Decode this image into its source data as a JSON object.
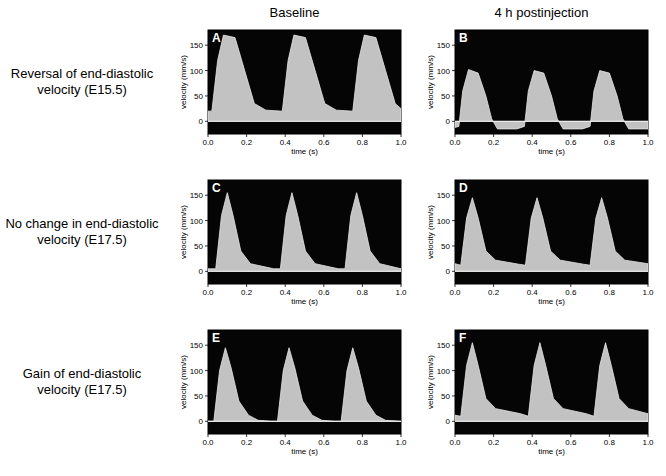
{
  "figure": {
    "columns": [
      "Baseline",
      "4 h postinjection"
    ],
    "rows": [
      "Reversal of end-diastolic velocity (E15.5)",
      "No change in end-diastolic velocity (E17.5)",
      "Gain of end-diastolic velocity (E17.5)"
    ]
  },
  "chart_data": [
    {
      "type": "area",
      "title": "A",
      "xlabel": "time (s)",
      "ylabel": "velocity (mm/s)",
      "color": "#e4e4e4",
      "x": [
        0,
        0.02,
        0.05,
        0.08,
        0.14,
        0.19,
        0.24,
        0.3,
        0.385,
        0.415,
        0.445,
        0.505,
        0.555,
        0.605,
        0.665,
        0.75,
        0.78,
        0.81,
        0.87,
        0.92,
        0.97,
        1.0
      ],
      "values": [
        20,
        20,
        120,
        170,
        165,
        100,
        35,
        22,
        20,
        120,
        170,
        165,
        100,
        35,
        22,
        20,
        120,
        170,
        165,
        100,
        35,
        25
      ],
      "xlim": [
        0,
        1
      ],
      "ylim": [
        -25,
        180
      ],
      "xticks": [
        {
          "value": 0,
          "label": "0.0"
        },
        {
          "value": 0.2,
          "label": "0.2"
        },
        {
          "value": 0.4,
          "label": "0.4"
        },
        {
          "value": 0.6,
          "label": "0.6"
        },
        {
          "value": 0.8,
          "label": "0.8"
        },
        {
          "value": 1,
          "label": "1.0"
        }
      ],
      "yticks": [
        0,
        50,
        100,
        150
      ]
    },
    {
      "type": "area",
      "title": "B",
      "xlabel": "time (s)",
      "ylabel": "velocity (mm/s)",
      "color": "#e4e4e4",
      "x": [
        0,
        0.02,
        0.04,
        0.07,
        0.12,
        0.16,
        0.19,
        0.22,
        0.32,
        0.36,
        0.38,
        0.41,
        0.46,
        0.5,
        0.53,
        0.56,
        0.66,
        0.7,
        0.72,
        0.75,
        0.8,
        0.84,
        0.87,
        0.9,
        1.0
      ],
      "values": [
        -12,
        -10,
        60,
        102,
        95,
        50,
        5,
        -15,
        -15,
        -10,
        60,
        100,
        95,
        50,
        5,
        -15,
        -15,
        -10,
        60,
        100,
        95,
        50,
        5,
        -15,
        -15
      ],
      "xlim": [
        0,
        1
      ],
      "ylim": [
        -25,
        180
      ],
      "xticks": [
        {
          "value": 0,
          "label": "0.0"
        },
        {
          "value": 0.2,
          "label": "0.2"
        },
        {
          "value": 0.4,
          "label": "0.4"
        },
        {
          "value": 0.6,
          "label": "0.6"
        },
        {
          "value": 0.8,
          "label": "0.8"
        },
        {
          "value": 1,
          "label": "1.0"
        }
      ],
      "yticks": [
        0,
        50,
        100,
        150
      ]
    },
    {
      "type": "area",
      "title": "C",
      "xlabel": "time (s)",
      "ylabel": "velocity (mm/s)",
      "color": "#e4e4e4",
      "x": [
        0,
        0.04,
        0.07,
        0.1,
        0.13,
        0.17,
        0.22,
        0.34,
        0.375,
        0.405,
        0.435,
        0.465,
        0.505,
        0.555,
        0.675,
        0.71,
        0.74,
        0.77,
        0.8,
        0.84,
        0.89,
        1.0
      ],
      "values": [
        5,
        5,
        110,
        155,
        110,
        40,
        15,
        5,
        5,
        110,
        155,
        110,
        40,
        15,
        5,
        5,
        110,
        155,
        110,
        40,
        15,
        5
      ],
      "xlim": [
        0,
        1
      ],
      "ylim": [
        -25,
        180
      ],
      "xticks": [
        {
          "value": 0,
          "label": "0.0"
        },
        {
          "value": 0.2,
          "label": "0.2"
        },
        {
          "value": 0.4,
          "label": "0.4"
        },
        {
          "value": 0.6,
          "label": "0.6"
        },
        {
          "value": 0.8,
          "label": "0.8"
        },
        {
          "value": 1,
          "label": "1.0"
        }
      ],
      "yticks": [
        0,
        50,
        100,
        150
      ]
    },
    {
      "type": "area",
      "title": "D",
      "xlabel": "time (s)",
      "ylabel": "velocity (mm/s)",
      "color": "#e4e4e4",
      "x": [
        0,
        0.03,
        0.06,
        0.09,
        0.12,
        0.16,
        0.21,
        0.33,
        0.365,
        0.395,
        0.425,
        0.455,
        0.495,
        0.545,
        0.665,
        0.7,
        0.73,
        0.76,
        0.79,
        0.83,
        0.88,
        1.0
      ],
      "values": [
        15,
        12,
        105,
        145,
        105,
        40,
        22,
        14,
        12,
        105,
        145,
        105,
        40,
        22,
        14,
        12,
        105,
        145,
        105,
        40,
        22,
        15
      ],
      "xlim": [
        0,
        1
      ],
      "ylim": [
        -25,
        180
      ],
      "xticks": [
        {
          "value": 0,
          "label": "0.0"
        },
        {
          "value": 0.2,
          "label": "0.2"
        },
        {
          "value": 0.4,
          "label": "0.4"
        },
        {
          "value": 0.6,
          "label": "0.6"
        },
        {
          "value": 0.8,
          "label": "0.8"
        },
        {
          "value": 1,
          "label": "1.0"
        }
      ],
      "yticks": [
        0,
        50,
        100,
        150
      ]
    },
    {
      "type": "area",
      "title": "E",
      "xlabel": "time (s)",
      "ylabel": "velocity (mm/s)",
      "color": "#e4e4e4",
      "x": [
        0,
        0.03,
        0.06,
        0.09,
        0.12,
        0.16,
        0.21,
        0.26,
        0.33,
        0.36,
        0.39,
        0.42,
        0.45,
        0.49,
        0.54,
        0.59,
        0.66,
        0.69,
        0.72,
        0.75,
        0.78,
        0.82,
        0.87,
        0.92,
        1.0
      ],
      "values": [
        0,
        0,
        100,
        145,
        105,
        40,
        12,
        2,
        0,
        0,
        100,
        145,
        105,
        40,
        12,
        2,
        0,
        0,
        100,
        145,
        105,
        40,
        12,
        2,
        0
      ],
      "xlim": [
        0,
        1
      ],
      "ylim": [
        -25,
        180
      ],
      "xticks": [
        {
          "value": 0,
          "label": "0.0"
        },
        {
          "value": 0.2,
          "label": "0.2"
        },
        {
          "value": 0.4,
          "label": "0.4"
        },
        {
          "value": 0.6,
          "label": "0.6"
        },
        {
          "value": 0.8,
          "label": "0.8"
        },
        {
          "value": 1,
          "label": "1.0"
        }
      ],
      "yticks": [
        0,
        50,
        100,
        150
      ]
    },
    {
      "type": "area",
      "title": "F",
      "xlabel": "time (s)",
      "ylabel": "velocity (mm/s)",
      "color": "#e4e4e4",
      "x": [
        0,
        0.03,
        0.06,
        0.09,
        0.12,
        0.16,
        0.21,
        0.34,
        0.38,
        0.41,
        0.44,
        0.47,
        0.51,
        0.56,
        0.68,
        0.72,
        0.75,
        0.78,
        0.81,
        0.85,
        0.9,
        1.0
      ],
      "values": [
        12,
        10,
        110,
        155,
        110,
        45,
        25,
        15,
        10,
        110,
        155,
        110,
        45,
        25,
        15,
        10,
        110,
        155,
        110,
        45,
        25,
        15
      ],
      "xlim": [
        0,
        1
      ],
      "ylim": [
        -25,
        180
      ],
      "xticks": [
        {
          "value": 0,
          "label": "0.0"
        },
        {
          "value": 0.2,
          "label": "0.2"
        },
        {
          "value": 0.4,
          "label": "0.4"
        },
        {
          "value": 0.6,
          "label": "0.6"
        },
        {
          "value": 0.8,
          "label": "0.8"
        },
        {
          "value": 1,
          "label": "1.0"
        }
      ],
      "yticks": [
        0,
        50,
        100,
        150
      ]
    }
  ]
}
